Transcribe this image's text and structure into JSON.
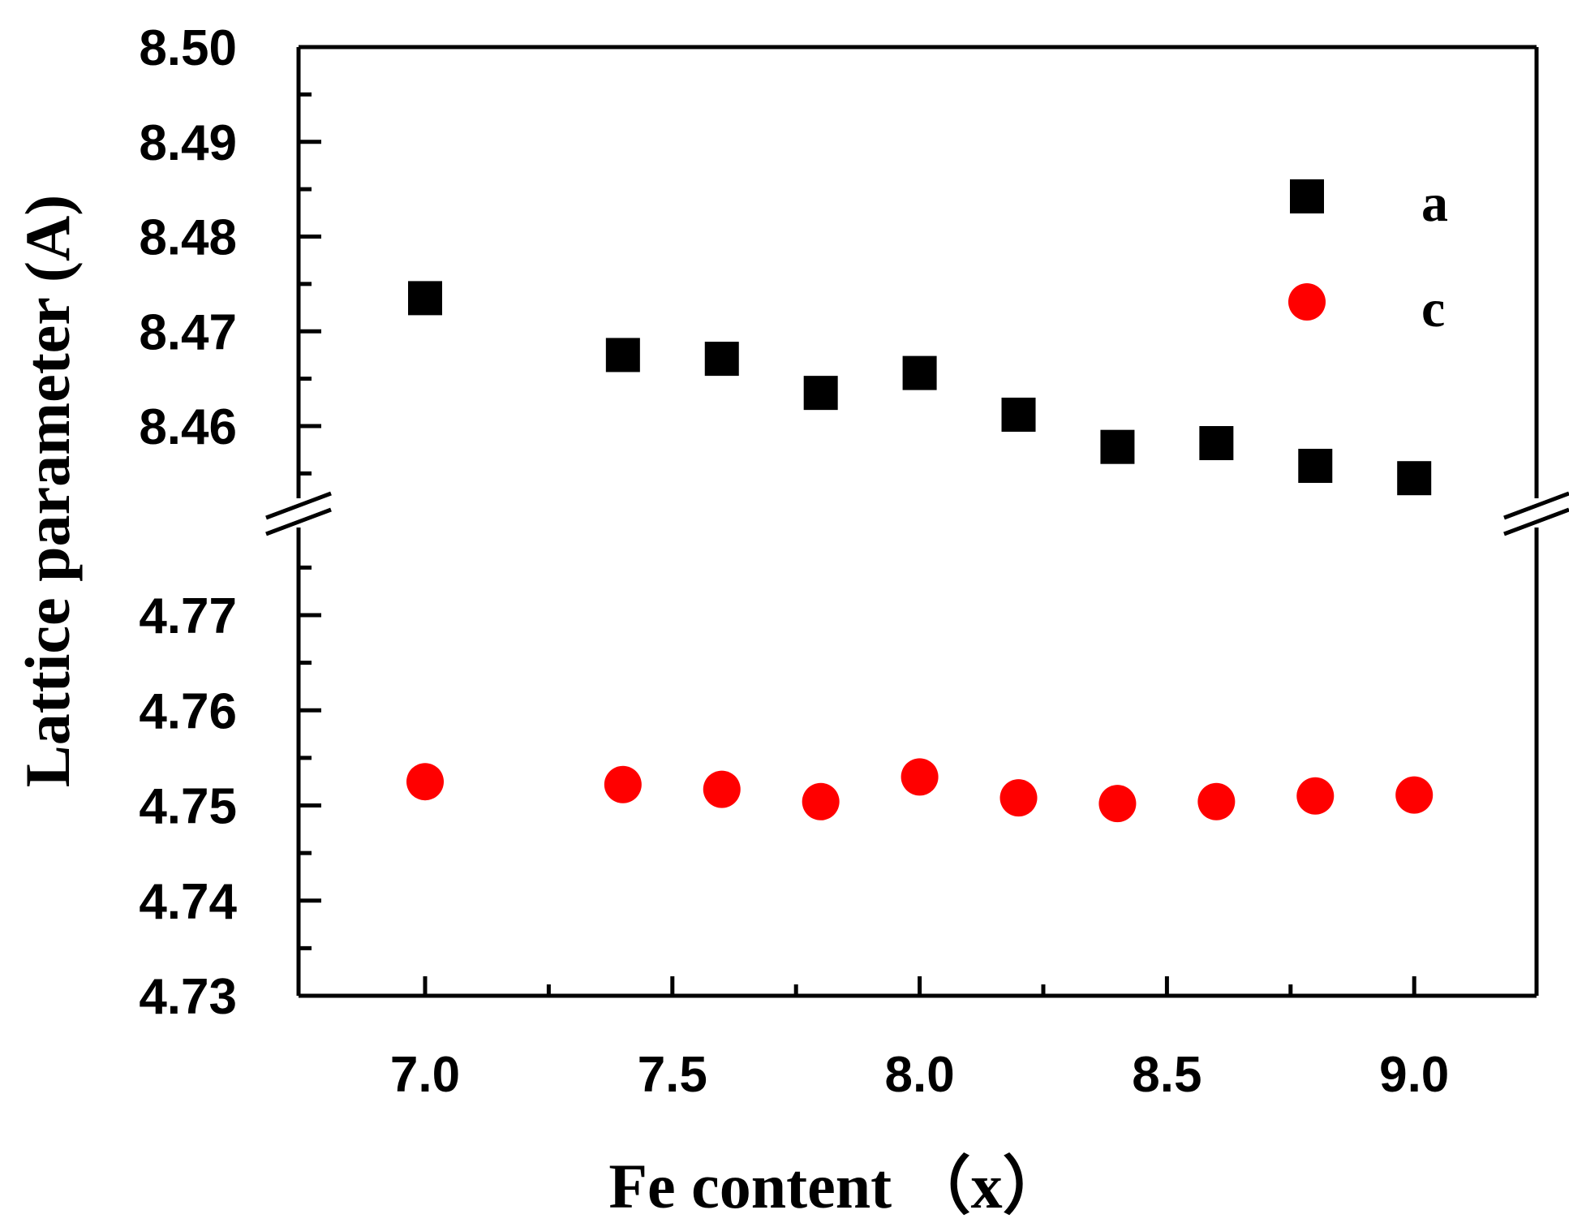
{
  "chart_data": {
    "type": "scatter",
    "xlabel": "Fe content （x）",
    "ylabel": "Lattice parameter (A)",
    "xlim": [
      6.75,
      9.25
    ],
    "x_ticks": [
      "7.0",
      "7.5",
      "8.0",
      "8.5",
      "9.0"
    ],
    "y_axis_break": true,
    "y_upper_ticks": [
      "8.50",
      "8.49",
      "8.48",
      "8.47",
      "8.46"
    ],
    "y_lower_ticks": [
      "4.77",
      "4.76",
      "4.75",
      "4.74",
      "4.73"
    ],
    "legend_position": "top-right",
    "series": [
      {
        "name": "a",
        "marker": "square",
        "color": "#000000",
        "x": [
          7.0,
          7.4,
          7.6,
          7.8,
          8.0,
          8.2,
          8.4,
          8.6,
          8.8,
          9.0
        ],
        "y": [
          8.4735,
          8.4675,
          8.4671,
          8.4635,
          8.4656,
          8.4612,
          8.4578,
          8.4582,
          8.4558,
          8.4545
        ]
      },
      {
        "name": "c",
        "marker": "circle",
        "color": "#ff0000",
        "x": [
          7.0,
          7.4,
          7.6,
          7.8,
          8.0,
          8.2,
          8.4,
          8.6,
          8.8,
          9.0
        ],
        "y": [
          4.7525,
          4.7522,
          4.7517,
          4.7504,
          4.753,
          4.7508,
          4.7502,
          4.7504,
          4.751,
          4.7511
        ]
      }
    ]
  }
}
